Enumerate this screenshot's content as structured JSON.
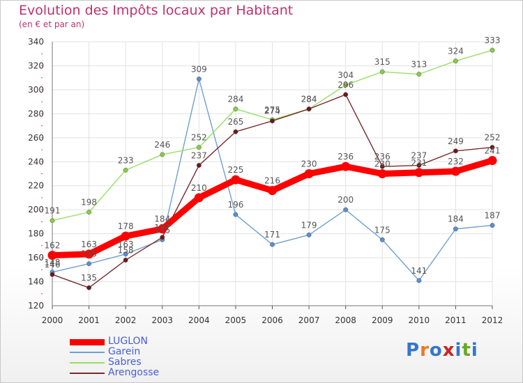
{
  "chart_data": {
    "type": "line",
    "title": "Evolution des Impôts locaux par Habitant",
    "subtitle": "(en € et par an)",
    "xlabel": "",
    "ylabel": "",
    "categories": [
      "2000",
      "2001",
      "2002",
      "2003",
      "2004",
      "2005",
      "2006",
      "2007",
      "2008",
      "2009",
      "2010",
      "2011",
      "2012"
    ],
    "ylim": [
      120,
      340
    ],
    "yticks": [
      120,
      140,
      160,
      180,
      200,
      220,
      240,
      260,
      280,
      300,
      320,
      340
    ],
    "grid": true,
    "legend_position": "bottom-left",
    "series": [
      {
        "name": "LUGLON",
        "color": "#ff0000",
        "point_color": "#ff0000",
        "values": [
          162,
          163,
          178,
          184,
          210,
          225,
          216,
          230,
          236,
          230,
          231,
          232,
          241
        ]
      },
      {
        "name": "Garein",
        "color": "#6fa0d0",
        "point_color": "#5b8ed0",
        "values": [
          148,
          155,
          163,
          175,
          309,
          196,
          171,
          179,
          200,
          175,
          141,
          184,
          187
        ]
      },
      {
        "name": "Sabres",
        "color": "#99dd66",
        "point_color": "#88cc44",
        "values": [
          191,
          198,
          233,
          246,
          252,
          284,
          275,
          284,
          304,
          315,
          313,
          324,
          333
        ]
      },
      {
        "name": "Arengosse",
        "color": "#7a2a2a",
        "point_color": "#6a1a1a",
        "values": [
          146,
          135,
          158,
          177,
          237,
          265,
          274,
          284,
          296,
          236,
          237,
          249,
          252
        ]
      }
    ]
  },
  "logo": {
    "text": "Proxiti",
    "letter_colors": [
      "#3377cc",
      "#ee7722",
      "#3377cc",
      "#cc2222",
      "#3377cc",
      "#66aa22",
      "#3377cc"
    ]
  }
}
